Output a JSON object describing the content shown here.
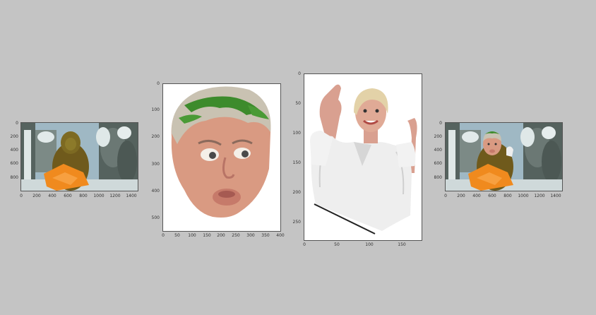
{
  "panels": [
    {
      "id": "original-scene",
      "x_ticks": [
        "0",
        "200",
        "400",
        "600",
        "800",
        "1000",
        "1200",
        "1400"
      ],
      "y_ticks": [
        "0",
        "200",
        "400",
        "600",
        "800"
      ]
    },
    {
      "id": "face-crop",
      "x_ticks": [
        "0",
        "50",
        "100",
        "150",
        "200",
        "250",
        "300",
        "350",
        "400"
      ],
      "y_ticks": [
        "0",
        "100",
        "200",
        "300",
        "400",
        "500"
      ]
    },
    {
      "id": "body-crop",
      "x_ticks": [
        "0",
        "50",
        "100",
        "150"
      ],
      "y_ticks": [
        "0",
        "50",
        "100",
        "150",
        "200",
        "250"
      ]
    },
    {
      "id": "composite-scene",
      "x_ticks": [
        "0",
        "200",
        "400",
        "600",
        "800",
        "1000",
        "1200",
        "1400"
      ],
      "y_ticks": [
        "0",
        "200",
        "400",
        "600",
        "800"
      ]
    }
  ],
  "colors": {
    "background": "#c4c4c4",
    "scene_sky": "#9fb8c4",
    "scene_rock": "#5d6a66",
    "scene_snow": "#e7eeee",
    "creature_fur": "#6f5a1c",
    "book_orange": "#f08a1e",
    "skin": "#d99a82",
    "hair_gray": "#c9c2b2",
    "hair_green": "#3d8b2c",
    "suit_white": "#eeeeee"
  }
}
